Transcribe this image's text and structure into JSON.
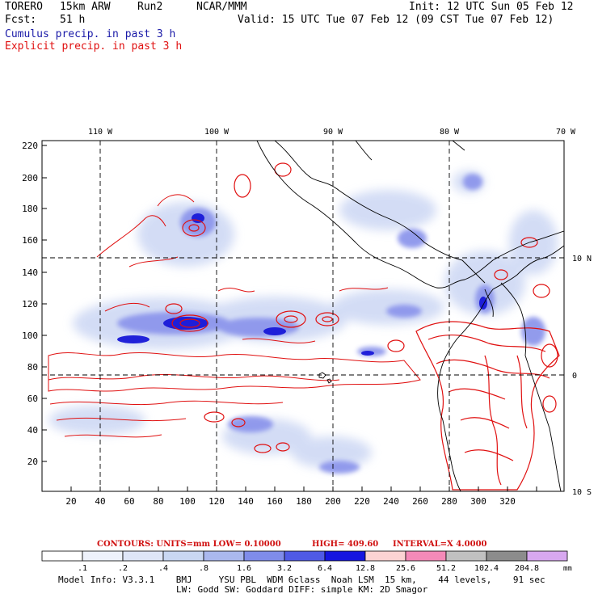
{
  "header": {
    "model": "TORERO",
    "resolution": "15km ARW",
    "run": "Run2",
    "org": "NCAR/MMM",
    "init": "Init: 12 UTC Sun 05 Feb 12",
    "fcst_label": "Fcst:",
    "fcst_value": "51 h",
    "valid": "Valid: 15 UTC Tue 07 Feb 12 (09 CST Tue 07 Feb 12)",
    "cumulus_label": "Cumulus precip. in past 3 h",
    "explicit_label": "Explicit precip. in past 3 h"
  },
  "map": {
    "top_lon_labels": [
      "110 W",
      "100 W",
      "90 W",
      "80 W",
      "70 W"
    ],
    "right_lat_labels": [
      "10 N",
      "0",
      "10 S"
    ],
    "y_ticks": [
      "220",
      "200",
      "180",
      "160",
      "140",
      "120",
      "100",
      "80",
      "60",
      "40",
      "20"
    ],
    "x_ticks": [
      "20",
      "40",
      "60",
      "80",
      "100",
      "120",
      "140",
      "160",
      "180",
      "200",
      "220",
      "240",
      "260",
      "280",
      "300",
      "320"
    ],
    "cumulus_color": "#3a3ae8",
    "explicit_color": "#e01010"
  },
  "contour_info": {
    "units": "CONTOURS:  UNITS=mm  LOW= 0.10000",
    "high": "HIGH=  409.60",
    "interval": "INTERVAL=X  4.0000"
  },
  "colorbar": {
    "labels": [
      ".1",
      ".2",
      ".4",
      ".8",
      "1.6",
      "3.2",
      "6.4",
      "12.8",
      "25.6",
      "51.2",
      "102.4",
      "204.8"
    ],
    "unit": "mm",
    "colors": [
      "#ffffff",
      "#eef2fb",
      "#dfe6f7",
      "#c9d7f2",
      "#aab8ee",
      "#7f8cea",
      "#4f5ae6",
      "#1515e0",
      "#fbd3d3",
      "#f48ab8",
      "#c0c0c0",
      "#8c8c8c",
      "#d8a8f0"
    ]
  },
  "footer": {
    "line1": "Model Info: V3.3.1    BMJ     YSU PBL  WDM 6class  Noah LSM  15 km,    44 levels,    91 sec",
    "line2": "LW: Godd SW: Goddard DIFF: simple KM: 2D Smagor"
  }
}
